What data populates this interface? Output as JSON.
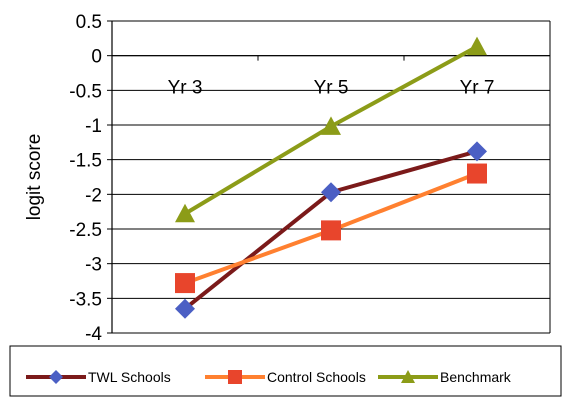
{
  "chart_data": {
    "type": "line",
    "title": "",
    "xlabel": "",
    "ylabel": "logit score",
    "categories": [
      "Yr 3",
      "Yr 5",
      "Yr 7"
    ],
    "ylim": [
      -4,
      0.5
    ],
    "yticks": [
      0.5,
      0,
      -0.5,
      -1,
      -1.5,
      -2,
      -2.5,
      -3,
      -3.5,
      -4
    ],
    "ytick_labels": [
      "0.5",
      "0",
      "-0.5",
      "-1",
      "-1.5",
      "-2",
      "-2.5",
      "-3",
      "-3.5",
      "-4"
    ],
    "grid": true,
    "legend_position": "bottom",
    "series": [
      {
        "name": "TWL Schools",
        "values": [
          -3.65,
          -1.97,
          -1.38
        ],
        "color": "#7b1a1a",
        "marker": "diamond",
        "marker_color": "#4b5fc4"
      },
      {
        "name": "Control Schools",
        "values": [
          -3.28,
          -2.52,
          -1.7
        ],
        "color": "#ff8030",
        "marker": "square",
        "marker_color": "#e8452c"
      },
      {
        "name": "Benchmark",
        "values": [
          -2.28,
          -1.02,
          0.13
        ],
        "color": "#8c9c18",
        "marker": "triangle",
        "marker_color": "#8c9c18"
      }
    ]
  }
}
